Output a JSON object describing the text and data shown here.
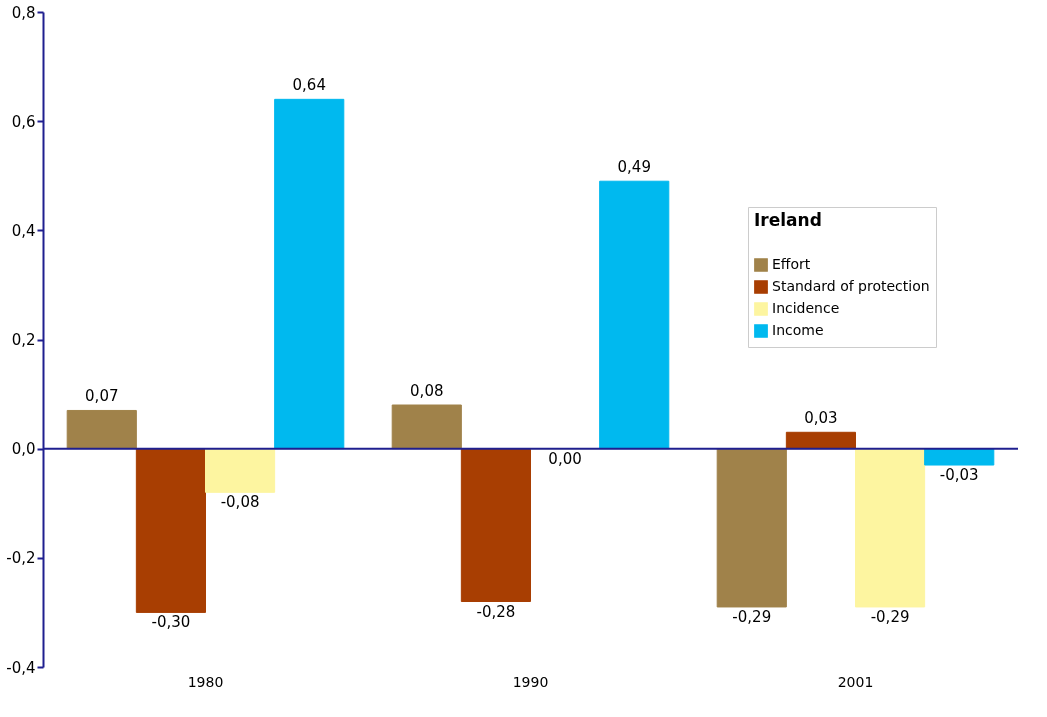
{
  "chart_data": {
    "type": "bar",
    "categories": [
      "1980",
      "1990",
      "2001"
    ],
    "series": [
      {
        "name": "Effort",
        "color": "#a0824a",
        "values": [
          0.07,
          0.08,
          -0.29
        ],
        "value_labels": [
          "0,07",
          "0,08",
          "-0,29"
        ]
      },
      {
        "name": "Standard of protection",
        "color": "#a83e02",
        "values": [
          -0.3,
          -0.28,
          0.03
        ],
        "value_labels": [
          "-0,30",
          "-0,28",
          "0,03"
        ]
      },
      {
        "name": "Incidence",
        "color": "#fdf5a0",
        "values": [
          -0.08,
          0.0,
          -0.29
        ],
        "value_labels": [
          "-0,08",
          "0,00",
          "-0,29"
        ]
      },
      {
        "name": "Income",
        "color": "#00b9ef",
        "values": [
          0.64,
          0.49,
          -0.03
        ],
        "value_labels": [
          "0,64",
          "0,49",
          "-0,03"
        ]
      }
    ],
    "ref_lines": [
      {
        "axis": "y",
        "value": 0,
        "color": "#1f1f8f"
      }
    ],
    "legend_title": "Ireland",
    "legend": "right",
    "grid": false,
    "ylim": [
      -0.4,
      0.8
    ],
    "yticks": [
      {
        "value": -0.4,
        "label": "-0,4"
      },
      {
        "value": -0.2,
        "label": "-0,2"
      },
      {
        "value": 0.0,
        "label": "0,0"
      },
      {
        "value": 0.2,
        "label": "0,2"
      },
      {
        "value": 0.4,
        "label": "0,4"
      },
      {
        "value": 0.6,
        "label": "0,6"
      },
      {
        "value": 0.8,
        "label": "0,8"
      }
    ]
  }
}
